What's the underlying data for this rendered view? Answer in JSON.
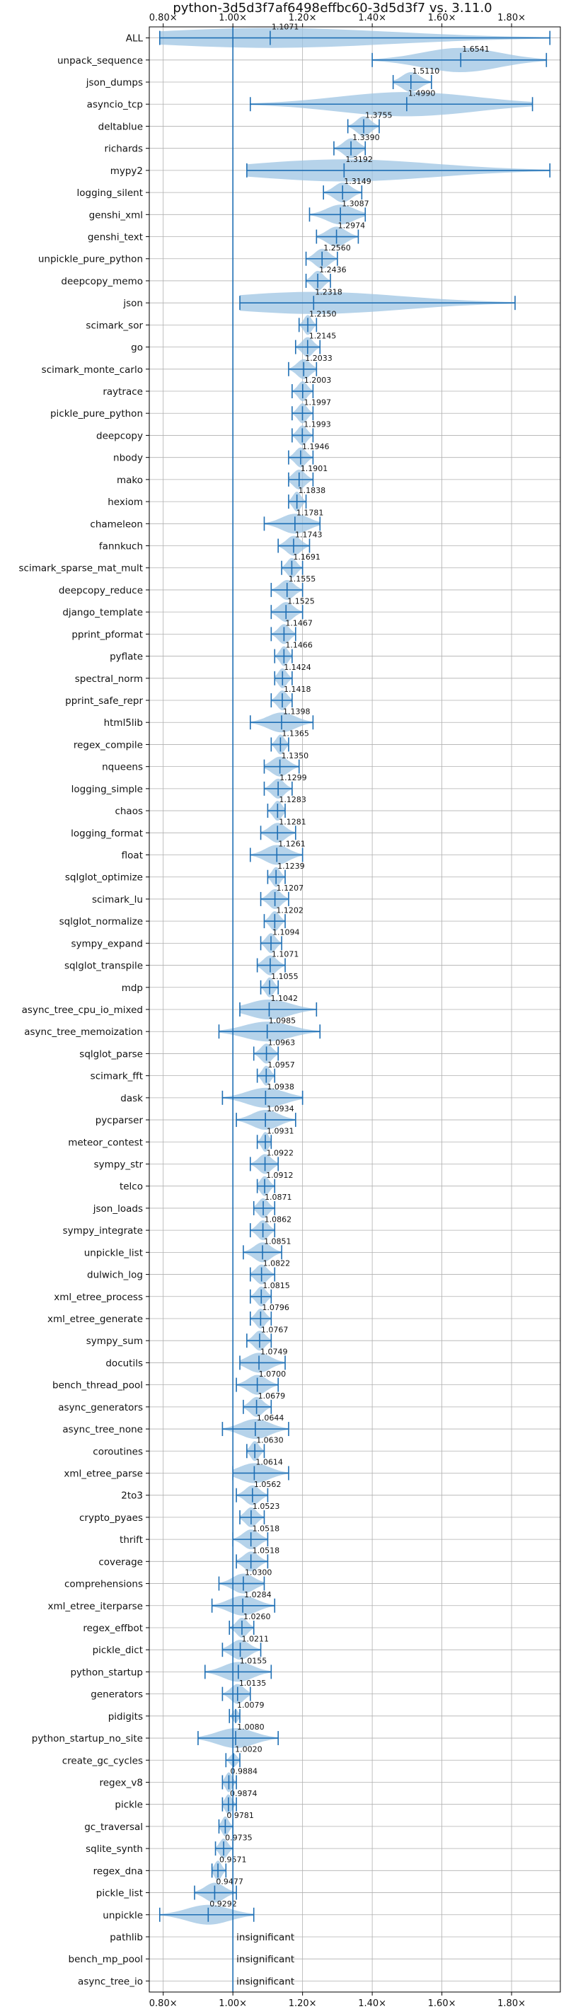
{
  "chart_data": {
    "type": "violin",
    "orientation": "horizontal",
    "title": "python-3d5d3f7af6498effbc60-3d5d3f7 vs. 3.11.0",
    "xlim": [
      0.76,
      1.94
    ],
    "xticks": [
      0.8,
      1.0,
      1.2,
      1.4,
      1.6,
      1.8
    ],
    "xtick_labels": [
      "0.80×",
      "1.00×",
      "1.20×",
      "1.40×",
      "1.60×",
      "1.80×"
    ],
    "reference_line": 1.0,
    "grid": true,
    "insignificant_label": "insignificant",
    "colors": {
      "violin": "#9ec4e3",
      "line": "#1f6fb4",
      "grid": "#b0b0b0"
    },
    "benchmarks": [
      {
        "name": "ALL",
        "mean": 1.1071,
        "min": 0.79,
        "max": 1.91,
        "width": 0.45
      },
      {
        "name": "unpack_sequence",
        "mean": 1.6541,
        "min": 1.4,
        "max": 1.9,
        "width": 0.55
      },
      {
        "name": "json_dumps",
        "mean": 1.511,
        "min": 1.46,
        "max": 1.57,
        "width": 0.45
      },
      {
        "name": "asyncio_tcp",
        "mean": 1.499,
        "min": 1.05,
        "max": 1.86,
        "width": 0.55
      },
      {
        "name": "deltablue",
        "mean": 1.3755,
        "min": 1.33,
        "max": 1.42,
        "width": 0.45
      },
      {
        "name": "richards",
        "mean": 1.339,
        "min": 1.29,
        "max": 1.38,
        "width": 0.45
      },
      {
        "name": "mypy2",
        "mean": 1.3192,
        "min": 1.04,
        "max": 1.91,
        "width": 0.5
      },
      {
        "name": "logging_silent",
        "mean": 1.3149,
        "min": 1.26,
        "max": 1.37,
        "width": 0.45
      },
      {
        "name": "genshi_xml",
        "mean": 1.3087,
        "min": 1.22,
        "max": 1.38,
        "width": 0.45
      },
      {
        "name": "genshi_text",
        "mean": 1.2974,
        "min": 1.24,
        "max": 1.36,
        "width": 0.45
      },
      {
        "name": "unpickle_pure_python",
        "mean": 1.256,
        "min": 1.21,
        "max": 1.3,
        "width": 0.45
      },
      {
        "name": "deepcopy_memo",
        "mean": 1.2436,
        "min": 1.21,
        "max": 1.28,
        "width": 0.45
      },
      {
        "name": "json",
        "mean": 1.2318,
        "min": 1.02,
        "max": 1.81,
        "width": 0.5
      },
      {
        "name": "scimark_sor",
        "mean": 1.215,
        "min": 1.19,
        "max": 1.24,
        "width": 0.45
      },
      {
        "name": "go",
        "mean": 1.2145,
        "min": 1.18,
        "max": 1.25,
        "width": 0.45
      },
      {
        "name": "scimark_monte_carlo",
        "mean": 1.2033,
        "min": 1.16,
        "max": 1.24,
        "width": 0.45
      },
      {
        "name": "raytrace",
        "mean": 1.2003,
        "min": 1.17,
        "max": 1.23,
        "width": 0.45
      },
      {
        "name": "pickle_pure_python",
        "mean": 1.1997,
        "min": 1.17,
        "max": 1.23,
        "width": 0.45
      },
      {
        "name": "deepcopy",
        "mean": 1.1993,
        "min": 1.17,
        "max": 1.23,
        "width": 0.45
      },
      {
        "name": "nbody",
        "mean": 1.1946,
        "min": 1.16,
        "max": 1.23,
        "width": 0.45
      },
      {
        "name": "mako",
        "mean": 1.1901,
        "min": 1.16,
        "max": 1.23,
        "width": 0.45
      },
      {
        "name": "hexiom",
        "mean": 1.1838,
        "min": 1.16,
        "max": 1.21,
        "width": 0.45
      },
      {
        "name": "chameleon",
        "mean": 1.1781,
        "min": 1.09,
        "max": 1.25,
        "width": 0.45
      },
      {
        "name": "fannkuch",
        "mean": 1.1743,
        "min": 1.13,
        "max": 1.22,
        "width": 0.45
      },
      {
        "name": "scimark_sparse_mat_mult",
        "mean": 1.1691,
        "min": 1.14,
        "max": 1.2,
        "width": 0.45
      },
      {
        "name": "deepcopy_reduce",
        "mean": 1.1555,
        "min": 1.11,
        "max": 1.2,
        "width": 0.45
      },
      {
        "name": "django_template",
        "mean": 1.1525,
        "min": 1.11,
        "max": 1.2,
        "width": 0.45
      },
      {
        "name": "pprint_pformat",
        "mean": 1.1467,
        "min": 1.11,
        "max": 1.18,
        "width": 0.45
      },
      {
        "name": "pyflate",
        "mean": 1.1466,
        "min": 1.12,
        "max": 1.17,
        "width": 0.45
      },
      {
        "name": "spectral_norm",
        "mean": 1.1424,
        "min": 1.12,
        "max": 1.17,
        "width": 0.45
      },
      {
        "name": "pprint_safe_repr",
        "mean": 1.1418,
        "min": 1.11,
        "max": 1.17,
        "width": 0.45
      },
      {
        "name": "html5lib",
        "mean": 1.1398,
        "min": 1.05,
        "max": 1.23,
        "width": 0.45
      },
      {
        "name": "regex_compile",
        "mean": 1.1365,
        "min": 1.11,
        "max": 1.16,
        "width": 0.45
      },
      {
        "name": "nqueens",
        "mean": 1.135,
        "min": 1.09,
        "max": 1.19,
        "width": 0.45
      },
      {
        "name": "logging_simple",
        "mean": 1.1299,
        "min": 1.09,
        "max": 1.17,
        "width": 0.45
      },
      {
        "name": "chaos",
        "mean": 1.1283,
        "min": 1.1,
        "max": 1.15,
        "width": 0.45
      },
      {
        "name": "logging_format",
        "mean": 1.1281,
        "min": 1.08,
        "max": 1.18,
        "width": 0.45
      },
      {
        "name": "float",
        "mean": 1.1261,
        "min": 1.05,
        "max": 1.2,
        "width": 0.45
      },
      {
        "name": "sqlglot_optimize",
        "mean": 1.1239,
        "min": 1.1,
        "max": 1.15,
        "width": 0.45
      },
      {
        "name": "scimark_lu",
        "mean": 1.1207,
        "min": 1.08,
        "max": 1.16,
        "width": 0.45
      },
      {
        "name": "sqlglot_normalize",
        "mean": 1.1202,
        "min": 1.09,
        "max": 1.15,
        "width": 0.45
      },
      {
        "name": "sympy_expand",
        "mean": 1.1094,
        "min": 1.08,
        "max": 1.14,
        "width": 0.45
      },
      {
        "name": "sqlglot_transpile",
        "mean": 1.1071,
        "min": 1.07,
        "max": 1.15,
        "width": 0.45
      },
      {
        "name": "mdp",
        "mean": 1.1055,
        "min": 1.08,
        "max": 1.13,
        "width": 0.45
      },
      {
        "name": "async_tree_cpu_io_mixed",
        "mean": 1.1042,
        "min": 1.02,
        "max": 1.24,
        "width": 0.45
      },
      {
        "name": "async_tree_memoization",
        "mean": 1.0985,
        "min": 0.96,
        "max": 1.25,
        "width": 0.45
      },
      {
        "name": "sqlglot_parse",
        "mean": 1.0963,
        "min": 1.06,
        "max": 1.13,
        "width": 0.45
      },
      {
        "name": "scimark_fft",
        "mean": 1.0957,
        "min": 1.07,
        "max": 1.12,
        "width": 0.45
      },
      {
        "name": "dask",
        "mean": 1.0938,
        "min": 0.97,
        "max": 1.2,
        "width": 0.45
      },
      {
        "name": "pycparser",
        "mean": 1.0934,
        "min": 1.01,
        "max": 1.18,
        "width": 0.45
      },
      {
        "name": "meteor_contest",
        "mean": 1.0931,
        "min": 1.07,
        "max": 1.11,
        "width": 0.45
      },
      {
        "name": "sympy_str",
        "mean": 1.0922,
        "min": 1.05,
        "max": 1.13,
        "width": 0.45
      },
      {
        "name": "telco",
        "mean": 1.0912,
        "min": 1.07,
        "max": 1.12,
        "width": 0.45
      },
      {
        "name": "json_loads",
        "mean": 1.0871,
        "min": 1.06,
        "max": 1.12,
        "width": 0.45
      },
      {
        "name": "sympy_integrate",
        "mean": 1.0862,
        "min": 1.05,
        "max": 1.12,
        "width": 0.45
      },
      {
        "name": "unpickle_list",
        "mean": 1.0851,
        "min": 1.03,
        "max": 1.14,
        "width": 0.45
      },
      {
        "name": "dulwich_log",
        "mean": 1.0822,
        "min": 1.05,
        "max": 1.12,
        "width": 0.45
      },
      {
        "name": "xml_etree_process",
        "mean": 1.0815,
        "min": 1.05,
        "max": 1.11,
        "width": 0.45
      },
      {
        "name": "xml_etree_generate",
        "mean": 1.0796,
        "min": 1.05,
        "max": 1.11,
        "width": 0.45
      },
      {
        "name": "sympy_sum",
        "mean": 1.0767,
        "min": 1.04,
        "max": 1.11,
        "width": 0.45
      },
      {
        "name": "docutils",
        "mean": 1.0749,
        "min": 1.02,
        "max": 1.15,
        "width": 0.45
      },
      {
        "name": "bench_thread_pool",
        "mean": 1.07,
        "min": 1.01,
        "max": 1.13,
        "width": 0.45
      },
      {
        "name": "async_generators",
        "mean": 1.0679,
        "min": 1.03,
        "max": 1.11,
        "width": 0.45
      },
      {
        "name": "async_tree_none",
        "mean": 1.0644,
        "min": 0.97,
        "max": 1.16,
        "width": 0.45
      },
      {
        "name": "coroutines",
        "mean": 1.063,
        "min": 1.04,
        "max": 1.09,
        "width": 0.45
      },
      {
        "name": "xml_etree_parse",
        "mean": 1.0614,
        "min": 1.0,
        "max": 1.16,
        "width": 0.45
      },
      {
        "name": "2to3",
        "mean": 1.0562,
        "min": 1.01,
        "max": 1.1,
        "width": 0.45
      },
      {
        "name": "crypto_pyaes",
        "mean": 1.0523,
        "min": 1.02,
        "max": 1.09,
        "width": 0.45
      },
      {
        "name": "thrift",
        "mean": 1.0518,
        "min": 1.0,
        "max": 1.1,
        "width": 0.45
      },
      {
        "name": "coverage",
        "mean": 1.0518,
        "min": 1.01,
        "max": 1.1,
        "width": 0.45
      },
      {
        "name": "comprehensions",
        "mean": 1.03,
        "min": 0.96,
        "max": 1.09,
        "width": 0.45
      },
      {
        "name": "xml_etree_iterparse",
        "mean": 1.0284,
        "min": 0.94,
        "max": 1.12,
        "width": 0.45
      },
      {
        "name": "regex_effbot",
        "mean": 1.026,
        "min": 0.99,
        "max": 1.06,
        "width": 0.45
      },
      {
        "name": "pickle_dict",
        "mean": 1.0211,
        "min": 0.97,
        "max": 1.08,
        "width": 0.45
      },
      {
        "name": "python_startup",
        "mean": 1.0155,
        "min": 0.92,
        "max": 1.11,
        "width": 0.45
      },
      {
        "name": "generators",
        "mean": 1.0135,
        "min": 0.97,
        "max": 1.05,
        "width": 0.45
      },
      {
        "name": "pidigits",
        "mean": 1.0079,
        "min": 0.99,
        "max": 1.02,
        "width": 0.3
      },
      {
        "name": "python_startup_no_site",
        "mean": 1.008,
        "min": 0.9,
        "max": 1.13,
        "width": 0.45
      },
      {
        "name": "create_gc_cycles",
        "mean": 1.002,
        "min": 0.98,
        "max": 1.02,
        "width": 0.3
      },
      {
        "name": "regex_v8",
        "mean": 0.9884,
        "min": 0.97,
        "max": 1.01,
        "width": 0.45
      },
      {
        "name": "pickle",
        "mean": 0.9874,
        "min": 0.97,
        "max": 1.01,
        "width": 0.45
      },
      {
        "name": "gc_traversal",
        "mean": 0.9781,
        "min": 0.96,
        "max": 1.0,
        "width": 0.45
      },
      {
        "name": "sqlite_synth",
        "mean": 0.9735,
        "min": 0.95,
        "max": 1.0,
        "width": 0.45
      },
      {
        "name": "regex_dna",
        "mean": 0.9571,
        "min": 0.94,
        "max": 0.98,
        "width": 0.45
      },
      {
        "name": "pickle_list",
        "mean": 0.9477,
        "min": 0.89,
        "max": 1.01,
        "width": 0.45
      },
      {
        "name": "unpickle",
        "mean": 0.9292,
        "min": 0.79,
        "max": 1.06,
        "width": 0.45
      },
      {
        "name": "pathlib",
        "insignificant": true
      },
      {
        "name": "bench_mp_pool",
        "insignificant": true
      },
      {
        "name": "async_tree_io",
        "insignificant": true
      }
    ]
  }
}
